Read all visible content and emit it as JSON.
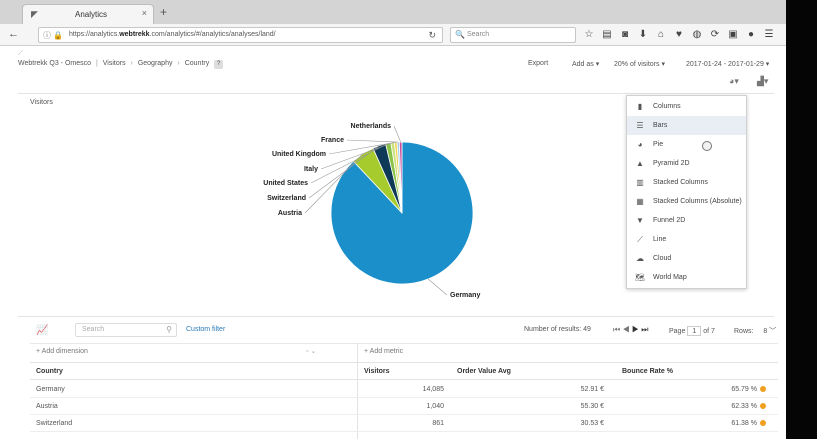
{
  "browser": {
    "tab_title": "Analytics",
    "tab_close": "×",
    "new_tab": "+",
    "url_prefix": "https://analytics.",
    "url_domain": "webtrekk",
    "url_suffix": ".com/analytics/#/analytics/analyses/land/",
    "search_placeholder": "Search"
  },
  "header": {
    "breadcrumb": [
      "Webtrekk Q3 - Omesco",
      "Visitors",
      "Geography",
      "Country"
    ],
    "help": "?",
    "export_label": "Export",
    "add_as_label": "Add as",
    "sampling_label": "20% of visitors",
    "date_range": "2017-01-24 - 2017-01-29"
  },
  "chart": {
    "title": "Visitors"
  },
  "chart_data": {
    "type": "pie",
    "title": "Visitors",
    "slices": [
      {
        "label": "Germany",
        "value": 88.0,
        "color": "#1a8fc9"
      },
      {
        "label": "Austria",
        "value": 5.3,
        "color": "#a6cb2c"
      },
      {
        "label": "Switzerland",
        "value": 3.0,
        "color": "#0e3a57"
      },
      {
        "label": "United States",
        "value": 1.2,
        "color": "#8bc34a"
      },
      {
        "label": "Italy",
        "value": 0.8,
        "color": "#cde07a"
      },
      {
        "label": "United Kingdom",
        "value": 0.6,
        "color": "#f0d35a"
      },
      {
        "label": "France",
        "value": 0.5,
        "color": "#9fd0ec"
      },
      {
        "label": "Netherlands",
        "value": 0.6,
        "color": "#c84fa0"
      }
    ]
  },
  "chart_menu": {
    "items": [
      {
        "label": "Columns",
        "icon": "bar-columns-icon"
      },
      {
        "label": "Bars",
        "icon": "bar-horizontal-icon",
        "active": true
      },
      {
        "label": "Pie",
        "icon": "pie-icon"
      },
      {
        "label": "Pyramid 2D",
        "icon": "pyramid-icon"
      },
      {
        "label": "Stacked Columns",
        "icon": "stacked-columns-icon"
      },
      {
        "label": "Stacked Columns (Absolute)",
        "icon": "stacked-columns-absolute-icon"
      },
      {
        "label": "Funnel 2D",
        "icon": "funnel-icon"
      },
      {
        "label": "Line",
        "icon": "line-icon"
      },
      {
        "label": "Cloud",
        "icon": "cloud-icon"
      },
      {
        "label": "World Map",
        "icon": "world-map-icon"
      }
    ]
  },
  "table_toolbar": {
    "search_placeholder": "Search",
    "custom_filter": "Custom filter",
    "results": "Number of results: 49",
    "page_label": "Page",
    "page_value": "1",
    "page_total": "of 7",
    "rows_label": "Rows:",
    "rows_value": "8"
  },
  "table": {
    "add_dimension": "+ Add dimension",
    "add_metric": "+ Add metric",
    "columns": [
      "Country",
      "Visitors",
      "Order Value Avg",
      "Bounce Rate %"
    ],
    "rows": [
      {
        "country": "Germany",
        "visitors": "14,085",
        "order_value": "52.91 €",
        "bounce": "65.79 %"
      },
      {
        "country": "Austria",
        "visitors": "1,040",
        "order_value": "55.30 €",
        "bounce": "62.33 %"
      },
      {
        "country": "Switzerland",
        "visitors": "861",
        "order_value": "30.53 €",
        "bounce": "61.38 %"
      }
    ]
  }
}
